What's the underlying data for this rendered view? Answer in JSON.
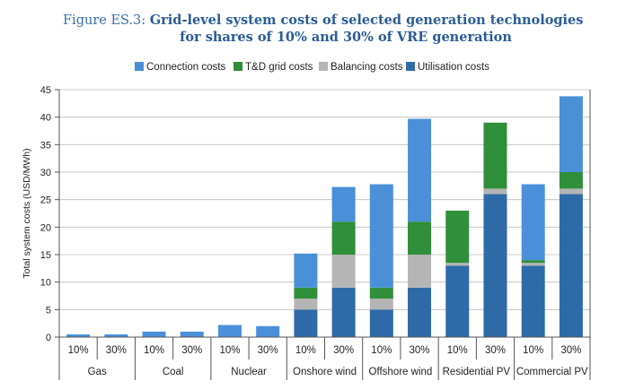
{
  "chart_data": {
    "type": "bar",
    "stacked": true,
    "title_prefix": "Figure ES.3: ",
    "title_line1": "Grid-level system costs of selected generation technologies",
    "title_line2": "for shares of 10% and 30% of VRE generation",
    "ylabel": "Total system costs (USD/MWh)",
    "xlabel": "",
    "ylim": [
      0,
      45
    ],
    "yticks": [
      "0",
      "5",
      "10",
      "15",
      "20",
      "25",
      "30",
      "35",
      "40",
      "45"
    ],
    "groups": [
      "Gas",
      "Coal",
      "Nuclear",
      "Onshore wind",
      "Offshore wind",
      "Residential PV",
      "Commercial PV"
    ],
    "categories": [
      "10%",
      "30%",
      "10%",
      "30%",
      "10%",
      "30%",
      "10%",
      "30%",
      "10%",
      "30%",
      "10%",
      "30%",
      "10%",
      "30%"
    ],
    "legend": [
      "Connection costs",
      "T&D grid costs",
      "Balancing costs",
      "Utilisation costs"
    ],
    "legend_position": "top-center",
    "series": [
      {
        "name": "Utilisation costs",
        "color": "#2e6aa8",
        "values": [
          0,
          0,
          0,
          0,
          0,
          0,
          5,
          9,
          5,
          9,
          13,
          26,
          13,
          26
        ]
      },
      {
        "name": "Balancing costs",
        "color": "#b5b5b5",
        "values": [
          0,
          0,
          0,
          0,
          0,
          0,
          2,
          6,
          2,
          6,
          0.5,
          1,
          0.5,
          1
        ]
      },
      {
        "name": "T&D grid costs",
        "color": "#2f8f3a",
        "values": [
          0,
          0,
          0,
          0,
          0,
          0,
          2,
          6,
          2,
          6,
          9.5,
          12,
          0.5,
          3
        ]
      },
      {
        "name": "Connection costs",
        "color": "#4a90d9",
        "values": [
          0.5,
          0.5,
          1,
          1,
          2.2,
          2,
          6.2,
          6.3,
          18.8,
          18.7,
          0,
          0,
          13.8,
          13.8
        ]
      }
    ]
  }
}
